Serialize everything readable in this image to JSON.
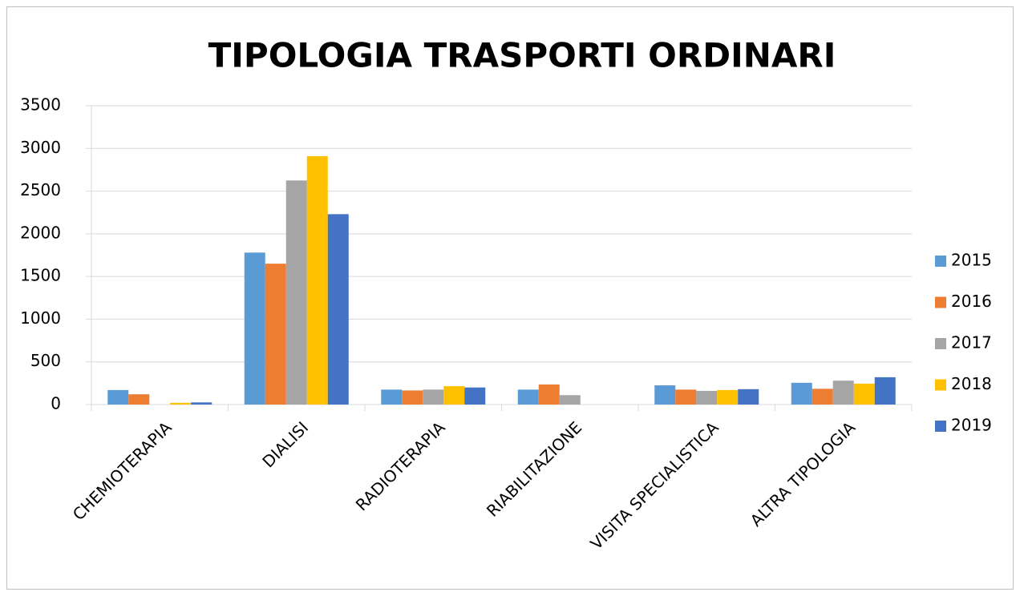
{
  "chart_data": {
    "type": "bar",
    "title": "TIPOLOGIA TRASPORTI ORDINARI",
    "categories": [
      "CHEMIOTERAPIA",
      "DIALISI",
      "RADIOTERAPIA",
      "RIABILITAZIONE",
      "VISITA SPECIALISTICA",
      "ALTRA TIPOLOGIA"
    ],
    "series": [
      {
        "name": "2015",
        "color": "#5b9bd5",
        "values": [
          170,
          1780,
          175,
          175,
          225,
          255
        ]
      },
      {
        "name": "2016",
        "color": "#ed7d31",
        "values": [
          120,
          1650,
          165,
          235,
          175,
          185
        ]
      },
      {
        "name": "2017",
        "color": "#a5a5a5",
        "values": [
          0,
          2625,
          175,
          110,
          160,
          280
        ]
      },
      {
        "name": "2018",
        "color": "#ffc000",
        "values": [
          20,
          2910,
          215,
          0,
          170,
          245
        ]
      },
      {
        "name": "2019",
        "color": "#4472c4",
        "values": [
          25,
          2230,
          200,
          0,
          180,
          320
        ]
      }
    ],
    "ylim": [
      0,
      3500
    ],
    "yticks": [
      0,
      500,
      1000,
      1500,
      2000,
      2500,
      3000,
      3500
    ],
    "grid": true,
    "legend": "right"
  }
}
